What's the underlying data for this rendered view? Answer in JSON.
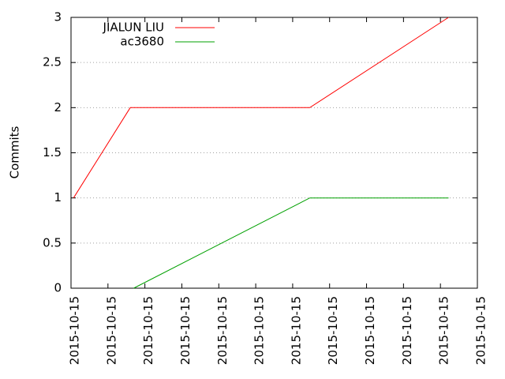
{
  "chart_data": {
    "type": "line",
    "ylabel": "Commits",
    "ylim": [
      0,
      3
    ],
    "yticks": [
      "0",
      "0.5",
      "1",
      "1.5",
      "2",
      "2.5",
      "3"
    ],
    "ytick_values": [
      0,
      0.5,
      1,
      1.5,
      2,
      2.5,
      3
    ],
    "xticks": [
      "2015-10-15",
      "2015-10-15",
      "2015-10-15",
      "2015-10-15",
      "2015-10-15",
      "2015-10-15",
      "2015-10-15",
      "2015-10-15",
      "2015-10-15",
      "2015-10-15",
      "2015-10-15",
      "2015-10-15"
    ],
    "grid": true,
    "legend_position": "top-left",
    "series": [
      {
        "name": "JIALUN LIU",
        "color": "#ff0000",
        "x": [
          0.075,
          1.75,
          7.05,
          11.15
        ],
        "y": [
          1,
          2,
          2,
          3
        ]
      },
      {
        "name": "ac3680",
        "color": "#00a000",
        "x": [
          1.85,
          7.05,
          11.15
        ],
        "y": [
          0,
          1,
          1
        ]
      }
    ],
    "xlim": [
      0,
      12
    ]
  }
}
